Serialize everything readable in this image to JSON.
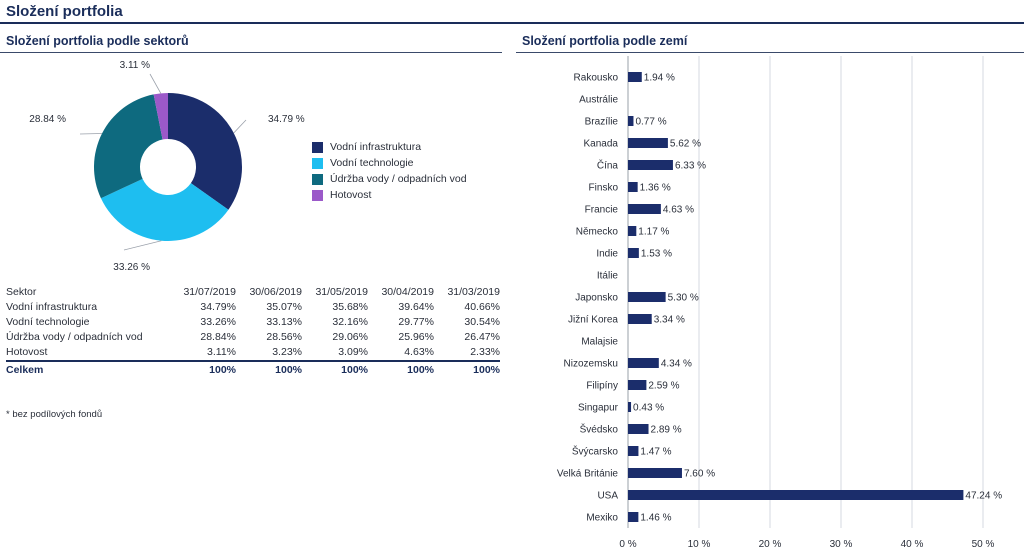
{
  "main_title": "Složení portfolia",
  "sector_panel": {
    "title": "Složení portfolia podle sektorů",
    "footnote": "* bez podílových fondů",
    "table": {
      "header": [
        "Sektor",
        "31/07/2019",
        "30/06/2019",
        "31/05/2019",
        "30/04/2019",
        "31/03/2019"
      ],
      "rows": [
        [
          "Vodní infrastruktura",
          "34.79%",
          "35.07%",
          "35.68%",
          "39.64%",
          "40.66%"
        ],
        [
          "Vodní technologie",
          "33.26%",
          "33.13%",
          "32.16%",
          "29.77%",
          "30.54%"
        ],
        [
          "Údržba vody / odpadních vod",
          "28.84%",
          "28.56%",
          "29.06%",
          "25.96%",
          "26.47%"
        ],
        [
          "Hotovost",
          "3.11%",
          "3.23%",
          "3.09%",
          "4.63%",
          "2.33%"
        ]
      ],
      "total": [
        "Celkem",
        "100%",
        "100%",
        "100%",
        "100%",
        "100%"
      ]
    }
  },
  "country_panel": {
    "title": "Složení portfolia podle zemí"
  },
  "chart_data": [
    {
      "type": "pie",
      "variant": "donut",
      "legend_position": "right",
      "slices": [
        {
          "name": "Vodní infrastruktura",
          "value": 34.79,
          "label": "34.79 %",
          "color": "#1b2d6b"
        },
        {
          "name": "Vodní technologie",
          "value": 33.26,
          "label": "33.26 %",
          "color": "#1ebef0"
        },
        {
          "name": "Údržba vody / odpadních vod",
          "value": 28.84,
          "label": "28.84 %",
          "color": "#0e6a7f"
        },
        {
          "name": "Hotovost",
          "value": 3.11,
          "label": "3.11 %",
          "color": "#9b59c9"
        }
      ]
    },
    {
      "type": "bar",
      "orientation": "horizontal",
      "grid": true,
      "bar_color": "#1b2d6b",
      "xlim": [
        0,
        50
      ],
      "x_ticks": [
        "0 %",
        "10 %",
        "20 %",
        "30 %",
        "40 %",
        "50 %"
      ],
      "categories": [
        "Rakousko",
        "Austrálie",
        "Brazílie",
        "Kanada",
        "Čína",
        "Finsko",
        "Francie",
        "Německo",
        "Indie",
        "Itálie",
        "Japonsko",
        "Jižní Korea",
        "Malajsie",
        "Nizozemsku",
        "Filipíny",
        "Singapur",
        "Švédsko",
        "Švýcarsko",
        "Velká Británie",
        "USA",
        "Mexiko"
      ],
      "values": [
        1.94,
        null,
        0.77,
        5.62,
        6.33,
        1.36,
        4.63,
        1.17,
        1.53,
        null,
        5.3,
        3.34,
        null,
        4.34,
        2.59,
        0.43,
        2.89,
        1.47,
        7.6,
        47.24,
        1.46
      ],
      "value_labels": [
        "1.94 %",
        "",
        "0.77 %",
        "5.62 %",
        "6.33 %",
        "1.36 %",
        "4.63 %",
        "1.17 %",
        "1.53 %",
        "",
        "5.30 %",
        "3.34 %",
        "",
        "4.34 %",
        "2.59 %",
        "0.43 %",
        "2.89 %",
        "1.47 %",
        "7.60 %",
        "47.24 %",
        "1.46 %"
      ]
    }
  ]
}
